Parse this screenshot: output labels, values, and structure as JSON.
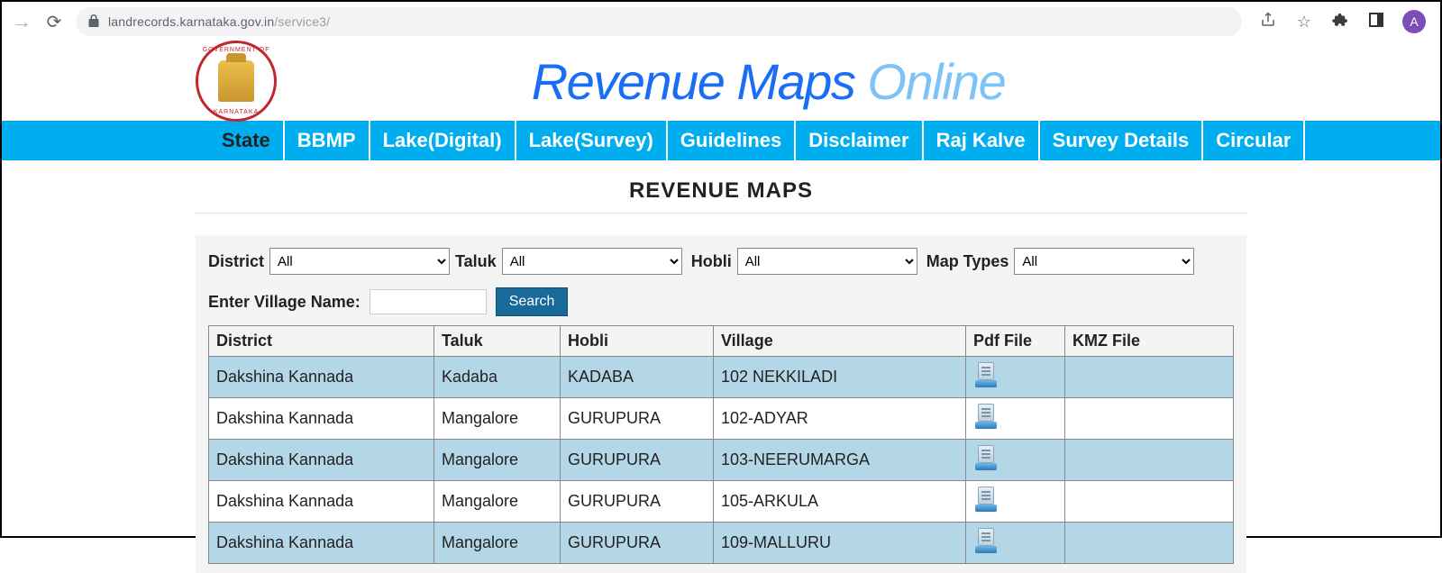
{
  "browser": {
    "url_host": "landrecords.karnataka.gov.in",
    "url_path": "/service3/",
    "avatar_letter": "A",
    "avatar_bg": "#7b4fb5"
  },
  "header": {
    "title_part1": "Revenue",
    "title_part2": "Maps",
    "title_part3": "Online",
    "seal_top": "GOVERNMENT OF",
    "seal_bottom": "KARNATAKA"
  },
  "nav": {
    "items": [
      "State",
      "BBMP",
      "Lake(Digital)",
      "Lake(Survey)",
      "Guidelines",
      "Disclaimer",
      "Raj Kalve",
      "Survey Details",
      "Circular"
    ],
    "active_index": 0,
    "bg_color": "#00aeef"
  },
  "page": {
    "title": "REVENUE MAPS"
  },
  "filters": {
    "district_label": "District",
    "district_value": "All",
    "taluk_label": "Taluk",
    "taluk_value": "All",
    "hobli_label": "Hobli",
    "hobli_value": "All",
    "maptypes_label": "Map Types",
    "maptypes_value": "All",
    "village_label": "Enter Village Name:",
    "village_value": "",
    "search_label": "Search",
    "panel_bg": "#f4f4f4"
  },
  "table": {
    "columns": [
      "District",
      "Taluk",
      "Hobli",
      "Village",
      "Pdf File",
      "KMZ File"
    ],
    "rows": [
      {
        "district": "Dakshina Kannada",
        "taluk": "Kadaba",
        "hobli": "KADABA",
        "village": "102 NEKKILADI",
        "pdf": true,
        "kmz": false
      },
      {
        "district": "Dakshina Kannada",
        "taluk": "Mangalore",
        "hobli": "GURUPURA",
        "village": "102-ADYAR",
        "pdf": true,
        "kmz": false
      },
      {
        "district": "Dakshina Kannada",
        "taluk": "Mangalore",
        "hobli": "GURUPURA",
        "village": "103-NEERUMARGA",
        "pdf": true,
        "kmz": false
      },
      {
        "district": "Dakshina Kannada",
        "taluk": "Mangalore",
        "hobli": "GURUPURA",
        "village": "105-ARKULA",
        "pdf": true,
        "kmz": false
      },
      {
        "district": "Dakshina Kannada",
        "taluk": "Mangalore",
        "hobli": "GURUPURA",
        "village": "109-MALLURU",
        "pdf": true,
        "kmz": false
      }
    ],
    "alt_row_bg": "#b4d7e8",
    "border_color": "#888888"
  }
}
